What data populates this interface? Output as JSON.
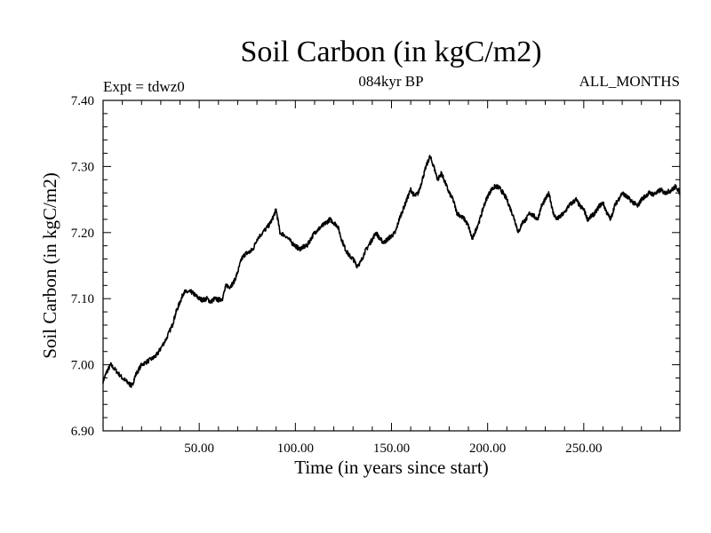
{
  "chart_data": {
    "type": "line",
    "title": "Soil Carbon (in kgC/m2)",
    "subtitle": "084kyr BP",
    "annotation_left": "Expt = tdwz0",
    "annotation_right": "ALL_MONTHS",
    "xlabel": "Time (in years since start)",
    "ylabel": "Soil Carbon (in kgC/m2)",
    "xlim": [
      0,
      300
    ],
    "ylim": [
      6.9,
      7.4
    ],
    "xticks": [
      50,
      100,
      150,
      200,
      250
    ],
    "xtick_labels": [
      "50.00",
      "100.00",
      "150.00",
      "200.00",
      "250.00"
    ],
    "yticks": [
      6.9,
      7.0,
      7.1,
      7.2,
      7.3,
      7.4
    ],
    "ytick_labels": [
      "6.90",
      "7.00",
      "7.10",
      "7.20",
      "7.30",
      "7.40"
    ],
    "grid": false,
    "series": [
      {
        "name": "Soil Carbon",
        "color": "#000000",
        "x": [
          0,
          2,
          4,
          7,
          10,
          12,
          14,
          15,
          17,
          20,
          23,
          26,
          28,
          30,
          33,
          36,
          38,
          40,
          42,
          44,
          46,
          48,
          50,
          52,
          54,
          56,
          58,
          60,
          62,
          64,
          66,
          68,
          70,
          72,
          74,
          76,
          78,
          80,
          83,
          86,
          88,
          90,
          92,
          95,
          98,
          100,
          102,
          104,
          106,
          108,
          110,
          112,
          114,
          116,
          118,
          120,
          122,
          124,
          126,
          128,
          130,
          132,
          134,
          136,
          138,
          140,
          142,
          144,
          146,
          148,
          150,
          152,
          154,
          156,
          158,
          160,
          162,
          164,
          166,
          168,
          170,
          172,
          174,
          176,
          178,
          180,
          182,
          184,
          186,
          188,
          190,
          192,
          194,
          196,
          198,
          200,
          202,
          204,
          206,
          208,
          210,
          212,
          214,
          216,
          218,
          220,
          222,
          224,
          226,
          228,
          230,
          232,
          234,
          236,
          238,
          240,
          242,
          244,
          246,
          248,
          250,
          252,
          254,
          256,
          258,
          260,
          262,
          264,
          266,
          268,
          270,
          272,
          274,
          276,
          278,
          280,
          282,
          284,
          286,
          288,
          290,
          292,
          294,
          296,
          298,
          300
        ],
        "values": [
          6.975,
          6.99,
          7.0,
          6.99,
          6.98,
          6.975,
          6.97,
          6.968,
          6.985,
          7.0,
          7.005,
          7.01,
          7.015,
          7.025,
          7.04,
          7.06,
          7.08,
          7.095,
          7.11,
          7.11,
          7.11,
          7.105,
          7.1,
          7.098,
          7.1,
          7.095,
          7.1,
          7.098,
          7.1,
          7.12,
          7.118,
          7.125,
          7.14,
          7.16,
          7.168,
          7.17,
          7.175,
          7.19,
          7.2,
          7.21,
          7.22,
          7.235,
          7.2,
          7.195,
          7.185,
          7.18,
          7.175,
          7.178,
          7.18,
          7.19,
          7.2,
          7.205,
          7.21,
          7.215,
          7.22,
          7.215,
          7.21,
          7.19,
          7.175,
          7.165,
          7.16,
          7.15,
          7.155,
          7.17,
          7.18,
          7.19,
          7.2,
          7.19,
          7.185,
          7.19,
          7.195,
          7.2,
          7.22,
          7.235,
          7.25,
          7.265,
          7.255,
          7.26,
          7.28,
          7.3,
          7.315,
          7.3,
          7.28,
          7.29,
          7.275,
          7.26,
          7.25,
          7.23,
          7.225,
          7.22,
          7.21,
          7.19,
          7.205,
          7.22,
          7.24,
          7.255,
          7.265,
          7.27,
          7.268,
          7.26,
          7.25,
          7.235,
          7.22,
          7.2,
          7.215,
          7.22,
          7.23,
          7.225,
          7.22,
          7.24,
          7.25,
          7.26,
          7.23,
          7.22,
          7.225,
          7.23,
          7.24,
          7.245,
          7.25,
          7.24,
          7.235,
          7.22,
          7.225,
          7.23,
          7.24,
          7.245,
          7.23,
          7.22,
          7.24,
          7.25,
          7.26,
          7.255,
          7.25,
          7.245,
          7.24,
          7.25,
          7.255,
          7.26,
          7.258,
          7.26,
          7.265,
          7.26,
          7.262,
          7.265,
          7.27,
          7.26
        ]
      }
    ]
  }
}
